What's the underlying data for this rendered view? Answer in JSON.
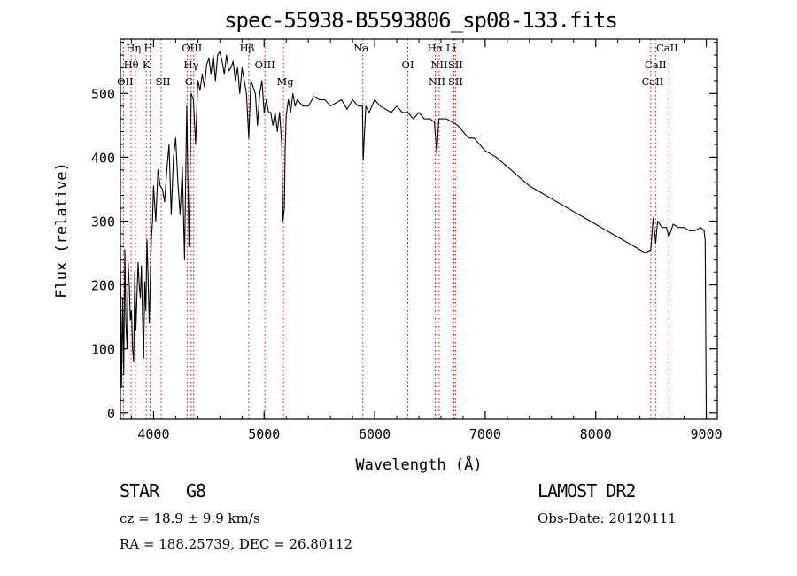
{
  "chart_data": {
    "type": "line",
    "title": "spec-55938-B5593806_sp08-133.fits",
    "xlabel": "Wavelength (Å)",
    "ylabel": "Flux (relative)",
    "xlim": [
      3700,
      9100
    ],
    "ylim": [
      -10,
      585
    ],
    "xticks": [
      4000,
      5000,
      6000,
      7000,
      8000,
      9000
    ],
    "yticks": [
      0,
      100,
      200,
      300,
      400,
      500
    ],
    "grid": false,
    "line_color": "#000000",
    "marker_color": "#cc0000",
    "series": [
      {
        "x": [
          3700,
          3710,
          3720,
          3730,
          3740,
          3750,
          3760,
          3770,
          3780,
          3790,
          3800,
          3810,
          3820,
          3830,
          3840,
          3850,
          3860,
          3870,
          3880,
          3890,
          3900,
          3910,
          3920,
          3930,
          3940,
          3950,
          3960,
          3970,
          3980,
          3990,
          4000,
          4020,
          4040,
          4060,
          4080,
          4100,
          4120,
          4140,
          4160,
          4180,
          4200,
          4220,
          4240,
          4260,
          4280,
          4300,
          4320,
          4340,
          4360,
          4380,
          4400,
          4420,
          4440,
          4460,
          4480,
          4500,
          4520,
          4540,
          4560,
          4580,
          4600,
          4620,
          4640,
          4660,
          4680,
          4700,
          4720,
          4740,
          4760,
          4780,
          4800,
          4820,
          4840,
          4861,
          4880,
          4900,
          4920,
          4940,
          4960,
          4980,
          5000,
          5020,
          5040,
          5060,
          5080,
          5100,
          5120,
          5140,
          5160,
          5170,
          5183,
          5190,
          5200,
          5220,
          5240,
          5260,
          5280,
          5300,
          5350,
          5400,
          5450,
          5500,
          5550,
          5600,
          5650,
          5700,
          5750,
          5800,
          5850,
          5890,
          5896,
          5920,
          5950,
          6000,
          6050,
          6100,
          6150,
          6200,
          6250,
          6300,
          6350,
          6400,
          6450,
          6500,
          6540,
          6563,
          6580,
          6600,
          6650,
          6700,
          6750,
          6800,
          6850,
          6900,
          6950,
          7000,
          7100,
          7200,
          7300,
          7400,
          7500,
          7600,
          7700,
          7800,
          7900,
          8000,
          8100,
          8200,
          8300,
          8400,
          8450,
          8498,
          8520,
          8542,
          8560,
          8600,
          8640,
          8662,
          8700,
          8750,
          8800,
          8850,
          8900,
          8950,
          8980,
          8990,
          9000
        ],
        "y": [
          240,
          40,
          180,
          60,
          255,
          140,
          100,
          235,
          200,
          145,
          160,
          100,
          80,
          220,
          130,
          185,
          235,
          200,
          180,
          230,
          150,
          85,
          205,
          160,
          270,
          215,
          140,
          200,
          270,
          300,
          355,
          300,
          380,
          355,
          350,
          330,
          380,
          420,
          310,
          400,
          430,
          360,
          310,
          385,
          240,
          480,
          260,
          500,
          490,
          420,
          520,
          505,
          530,
          510,
          545,
          555,
          530,
          560,
          520,
          560,
          565,
          550,
          530,
          560,
          535,
          540,
          550,
          520,
          540,
          500,
          540,
          520,
          500,
          430,
          520,
          510,
          500,
          450,
          500,
          520,
          470,
          490,
          470,
          470,
          450,
          470,
          440,
          470,
          420,
          300,
          320,
          410,
          465,
          490,
          470,
          500,
          480,
          490,
          480,
          480,
          495,
          490,
          490,
          480,
          485,
          490,
          475,
          490,
          480,
          480,
          395,
          480,
          470,
          490,
          480,
          475,
          470,
          480,
          470,
          470,
          460,
          470,
          460,
          460,
          455,
          405,
          460,
          460,
          460,
          455,
          450,
          440,
          430,
          430,
          420,
          410,
          400,
          385,
          370,
          355,
          345,
          335,
          325,
          315,
          305,
          295,
          285,
          275,
          265,
          255,
          250,
          255,
          305,
          265,
          300,
          290,
          290,
          275,
          295,
          290,
          290,
          285,
          285,
          290,
          285,
          270,
          0
        ]
      }
    ],
    "lines": {
      "labels": [
        "Hη",
        "Hθ",
        "OII",
        "H",
        "K",
        "SII",
        "OIII",
        "Hγ",
        "G",
        "Hβ",
        "OIII",
        "Mg",
        "Na",
        "OI",
        "NII",
        "Li",
        "NII",
        "SII",
        "Hα",
        "SII",
        "CaII",
        "CaII",
        "CaII"
      ],
      "wavelengths": [
        3835,
        3797,
        3727,
        3969,
        3934,
        4069,
        4363,
        4340,
        4304,
        4861,
        5007,
        5175,
        5893,
        6300,
        6548,
        6708,
        6584,
        6716,
        6563,
        6731,
        8498,
        8662,
        8542
      ]
    }
  },
  "info": {
    "object_type": "STAR",
    "subclass": "G8",
    "survey": "LAMOST DR2",
    "cz": "cz = 18.9 ± 9.9 km/s",
    "obs_date": "Obs-Date: 20120111",
    "coords": "RA = 188.25739, DEC =  26.80112"
  }
}
